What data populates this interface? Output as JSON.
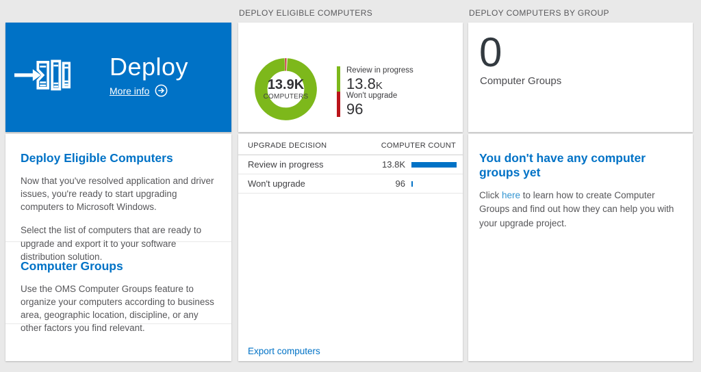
{
  "left": {
    "tile": {
      "title": "Deploy",
      "more_info_label": "More info"
    },
    "sections": [
      {
        "heading": "Deploy Eligible Computers",
        "paragraphs": [
          "Now that you've resolved application and driver issues, you're ready to start upgrading computers to Microsoft Windows.",
          "Select the list of computers that are ready to upgrade and export it to your software distribution solution."
        ]
      },
      {
        "heading": "Computer Groups",
        "paragraphs": [
          "Use the OMS Computer Groups feature to organize your computers according to business area, geographic location, discipline, or any other factors you find relevant."
        ]
      }
    ]
  },
  "middle": {
    "header": "DEPLOY ELIGIBLE COMPUTERS",
    "donut": {
      "center_value": "13.9K",
      "center_label": "COMPUTERS",
      "legend": [
        {
          "label": "Review in progress",
          "value": "13.8",
          "unit": "K",
          "color": "#7db81b"
        },
        {
          "label": "Won't upgrade",
          "value": "96",
          "unit": "",
          "color": "#ba141a"
        }
      ]
    },
    "table": {
      "col_decision": "UPGRADE DECISION",
      "col_count": "COMPUTER COUNT",
      "rows": [
        {
          "decision": "Review in progress",
          "count": "13.8K",
          "bar_pct": 100
        },
        {
          "decision": "Won't upgrade",
          "count": "96",
          "bar_pct": 3
        }
      ]
    },
    "export_label": "Export computers"
  },
  "right": {
    "header": "DEPLOY COMPUTERS BY GROUP",
    "group_count": "0",
    "group_count_label": "Computer Groups",
    "empty_state": {
      "heading": "You don't have any computer groups yet",
      "text_before_link": "Click ",
      "link_label": "here",
      "text_after_link": " to learn how to create Computer Groups and find out how they can help you with your upgrade project."
    }
  },
  "colors": {
    "tile_blue": "#0072c6",
    "accent_blue": "#0072c6",
    "bar_blue": "#0072c6",
    "green": "#7db81b",
    "red": "#ba141a",
    "page_background": "#e9e9e9"
  },
  "chart_data": [
    {
      "type": "pie",
      "subtype": "donut",
      "title": "DEPLOY ELIGIBLE COMPUTERS",
      "center_value": "13.9K",
      "center_label": "COMPUTERS",
      "slices": [
        {
          "label": "Review in progress",
          "value": 13800,
          "display": "13.8K",
          "color": "#7db81b"
        },
        {
          "label": "Won't upgrade",
          "value": 96,
          "display": "96",
          "color": "#ba141a"
        }
      ],
      "legend_position": "right"
    },
    {
      "type": "table",
      "columns": [
        "UPGRADE DECISION",
        "COMPUTER COUNT"
      ],
      "rows": [
        [
          "Review in progress",
          "13.8K"
        ],
        [
          "Won't upgrade",
          "96"
        ]
      ],
      "bar_scale_max": 13800,
      "bar_color": "#0072c6"
    }
  ]
}
